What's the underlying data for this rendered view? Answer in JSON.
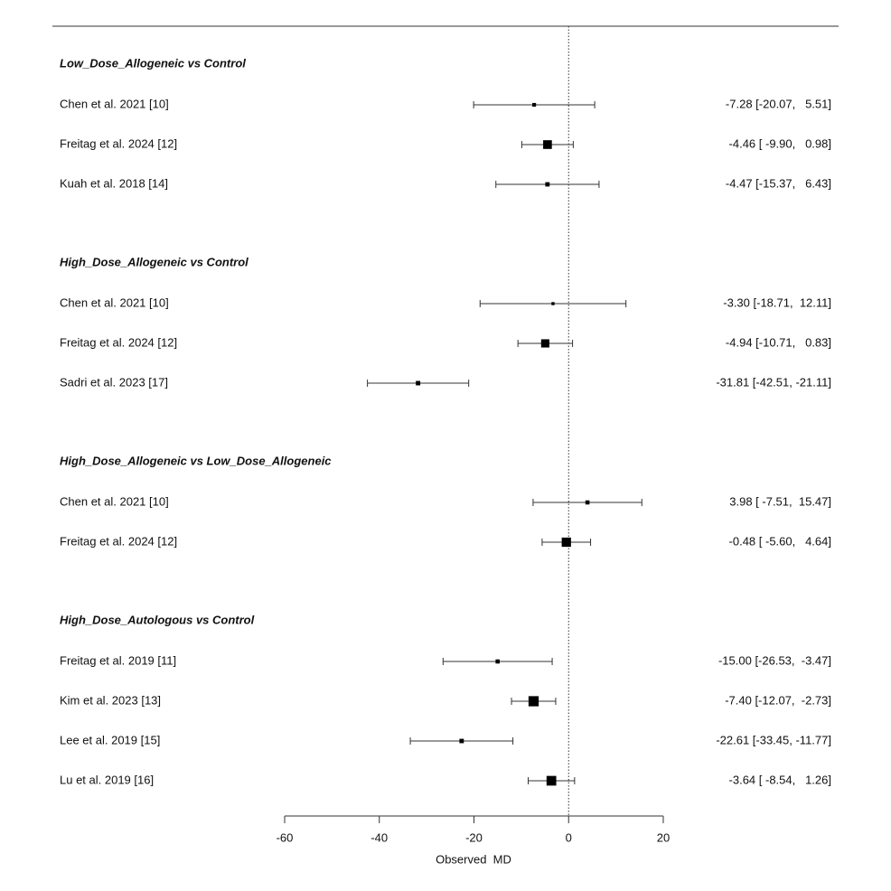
{
  "chart_data": {
    "type": "forest",
    "x_label": "Observed  MD",
    "xlim": [
      -60,
      20
    ],
    "xticks": [
      -60,
      -40,
      -20,
      0,
      20
    ],
    "reference": 0,
    "groups": [
      {
        "title": "Low_Dose_Allogeneic vs Control",
        "studies": [
          {
            "label": "Chen et al. 2021 [10]",
            "estimate": -7.28,
            "lower": -20.07,
            "upper": 5.51,
            "ci_label": "-7.28 [-20.07,   5.51]"
          },
          {
            "label": "Freitag et al. 2024 [12]",
            "estimate": -4.46,
            "lower": -9.9,
            "upper": 0.98,
            "ci_label": "-4.46 [ -9.90,   0.98]"
          },
          {
            "label": "Kuah et al. 2018 [14]",
            "estimate": -4.47,
            "lower": -15.37,
            "upper": 6.43,
            "ci_label": "-4.47 [-15.37,   6.43]"
          }
        ]
      },
      {
        "title": "High_Dose_Allogeneic vs Control",
        "studies": [
          {
            "label": "Chen et al. 2021 [10]",
            "estimate": -3.3,
            "lower": -18.71,
            "upper": 12.11,
            "ci_label": "-3.30 [-18.71,  12.11]"
          },
          {
            "label": "Freitag et al. 2024 [12]",
            "estimate": -4.94,
            "lower": -10.71,
            "upper": 0.83,
            "ci_label": "-4.94 [-10.71,   0.83]"
          },
          {
            "label": "Sadri et al. 2023 [17]",
            "estimate": -31.81,
            "lower": -42.51,
            "upper": -21.11,
            "ci_label": "-31.81 [-42.51, -21.11]"
          }
        ]
      },
      {
        "title": "High_Dose_Allogeneic vs Low_Dose_Allogeneic",
        "studies": [
          {
            "label": "Chen et al. 2021 [10]",
            "estimate": 3.98,
            "lower": -7.51,
            "upper": 15.47,
            "ci_label": "3.98 [ -7.51,  15.47]"
          },
          {
            "label": "Freitag et al. 2024 [12]",
            "estimate": -0.48,
            "lower": -5.6,
            "upper": 4.64,
            "ci_label": "-0.48 [ -5.60,   4.64]"
          }
        ]
      },
      {
        "title": "High_Dose_Autologous vs Control",
        "studies": [
          {
            "label": "Freitag et al. 2019 [11]",
            "estimate": -15.0,
            "lower": -26.53,
            "upper": -3.47,
            "ci_label": "-15.00 [-26.53,  -3.47]"
          },
          {
            "label": "Kim et al. 2023 [13]",
            "estimate": -7.4,
            "lower": -12.07,
            "upper": -2.73,
            "ci_label": "-7.40 [-12.07,  -2.73]"
          },
          {
            "label": "Lee et al. 2019 [15]",
            "estimate": -22.61,
            "lower": -33.45,
            "upper": -11.77,
            "ci_label": "-22.61 [-33.45, -11.77]"
          },
          {
            "label": "Lu et al. 2019 [16]",
            "estimate": -3.64,
            "lower": -8.54,
            "upper": 1.26,
            "ci_label": "-3.64 [ -8.54,   1.26]"
          }
        ]
      }
    ]
  }
}
